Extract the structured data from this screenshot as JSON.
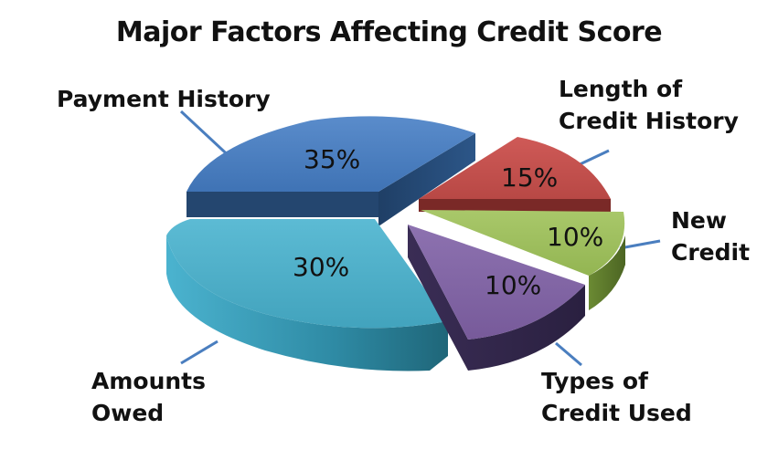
{
  "chart_data": {
    "type": "pie",
    "title": "Major Factors Affecting Credit Score",
    "three_d": true,
    "exploded": true,
    "slices": [
      {
        "label": "Payment History",
        "value": 35,
        "value_label": "35%",
        "color": "#4a7ebf"
      },
      {
        "label": "Length of Credit History",
        "label_lines": [
          "Length of",
          "Credit History"
        ],
        "value": 15,
        "value_label": "15%",
        "color": "#c0504d"
      },
      {
        "label": "New Credit",
        "label_lines": [
          "New",
          "Credit"
        ],
        "value": 10,
        "value_label": "10%",
        "color": "#9bbb59"
      },
      {
        "label": "Types of Credit Used",
        "label_lines": [
          "Types of",
          "Credit Used"
        ],
        "value": 10,
        "value_label": "10%",
        "color": "#8064a2"
      },
      {
        "label": "Amounts Owed",
        "label_lines": [
          "Amounts",
          "Owed"
        ],
        "value": 30,
        "value_label": "30%",
        "color": "#4bacc6"
      }
    ],
    "leader_line_color": "#4a7ebf"
  }
}
